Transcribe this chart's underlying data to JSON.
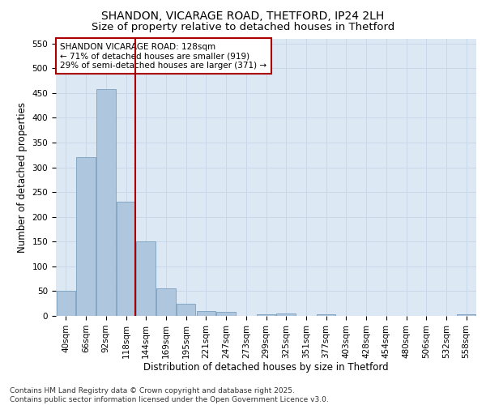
{
  "title1": "SHANDON, VICARAGE ROAD, THETFORD, IP24 2LH",
  "title2": "Size of property relative to detached houses in Thetford",
  "xlabel": "Distribution of detached houses by size in Thetford",
  "ylabel": "Number of detached properties",
  "categories": [
    "40sqm",
    "66sqm",
    "92sqm",
    "118sqm",
    "144sqm",
    "169sqm",
    "195sqm",
    "221sqm",
    "247sqm",
    "273sqm",
    "299sqm",
    "325sqm",
    "351sqm",
    "377sqm",
    "403sqm",
    "428sqm",
    "454sqm",
    "480sqm",
    "506sqm",
    "532sqm",
    "558sqm"
  ],
  "values": [
    50,
    320,
    457,
    230,
    150,
    55,
    25,
    10,
    8,
    0,
    4,
    5,
    0,
    4,
    0,
    0,
    0,
    0,
    0,
    0,
    3
  ],
  "bar_color": "#aec6de",
  "bar_edge_color": "#7aa0be",
  "grid_color": "#c8d8e8",
  "background_color": "#dce8f4",
  "vline_color": "#aa0000",
  "vline_index": 3,
  "annotation_text": "SHANDON VICARAGE ROAD: 128sqm\n← 71% of detached houses are smaller (919)\n29% of semi-detached houses are larger (371) →",
  "annotation_box_edgecolor": "#aa0000",
  "ylim": [
    0,
    560
  ],
  "yticks": [
    0,
    50,
    100,
    150,
    200,
    250,
    300,
    350,
    400,
    450,
    500,
    550
  ],
  "footer": "Contains HM Land Registry data © Crown copyright and database right 2025.\nContains public sector information licensed under the Open Government Licence v3.0.",
  "title1_fontsize": 10,
  "title2_fontsize": 9.5,
  "axis_label_fontsize": 8.5,
  "tick_fontsize": 7.5,
  "annotation_fontsize": 7.5,
  "footer_fontsize": 6.5
}
